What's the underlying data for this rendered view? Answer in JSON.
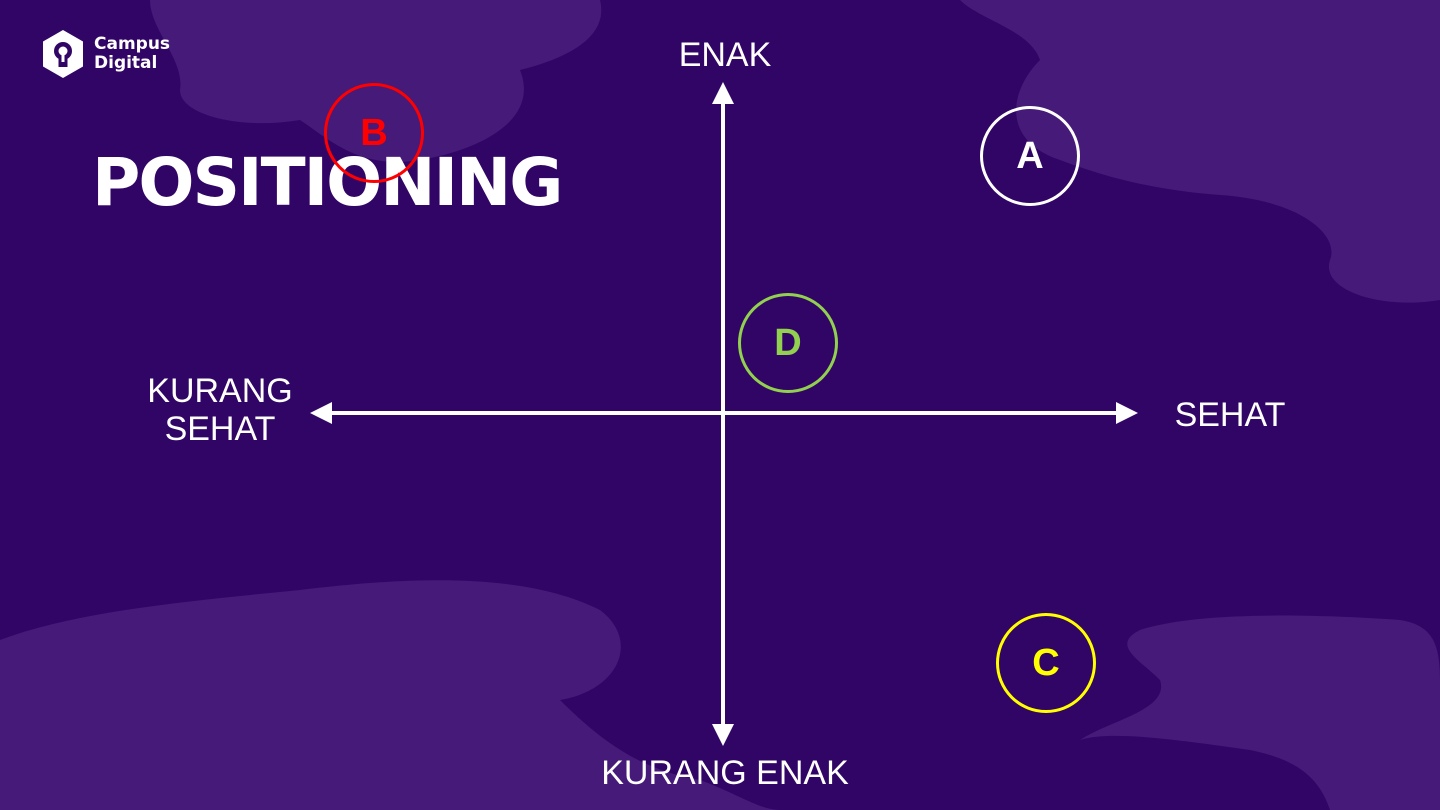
{
  "brand": {
    "line1": "Campus",
    "line2": "Digital",
    "icon": "lightbulb-hexagon-icon"
  },
  "title": "POSITIONING",
  "axes": {
    "top": "ENAK",
    "bottom": "KURANG ENAK",
    "left_line1": "KURANG",
    "left_line2": "SEHAT",
    "right": "SEHAT"
  },
  "markers": [
    {
      "label": "A",
      "color": "#ffffff"
    },
    {
      "label": "B",
      "color": "#ff0000"
    },
    {
      "label": "C",
      "color": "#ffff00"
    },
    {
      "label": "D",
      "color": "#92d050"
    }
  ],
  "colors": {
    "background": "#310565",
    "blob": "#451a78",
    "axis": "#ffffff"
  }
}
